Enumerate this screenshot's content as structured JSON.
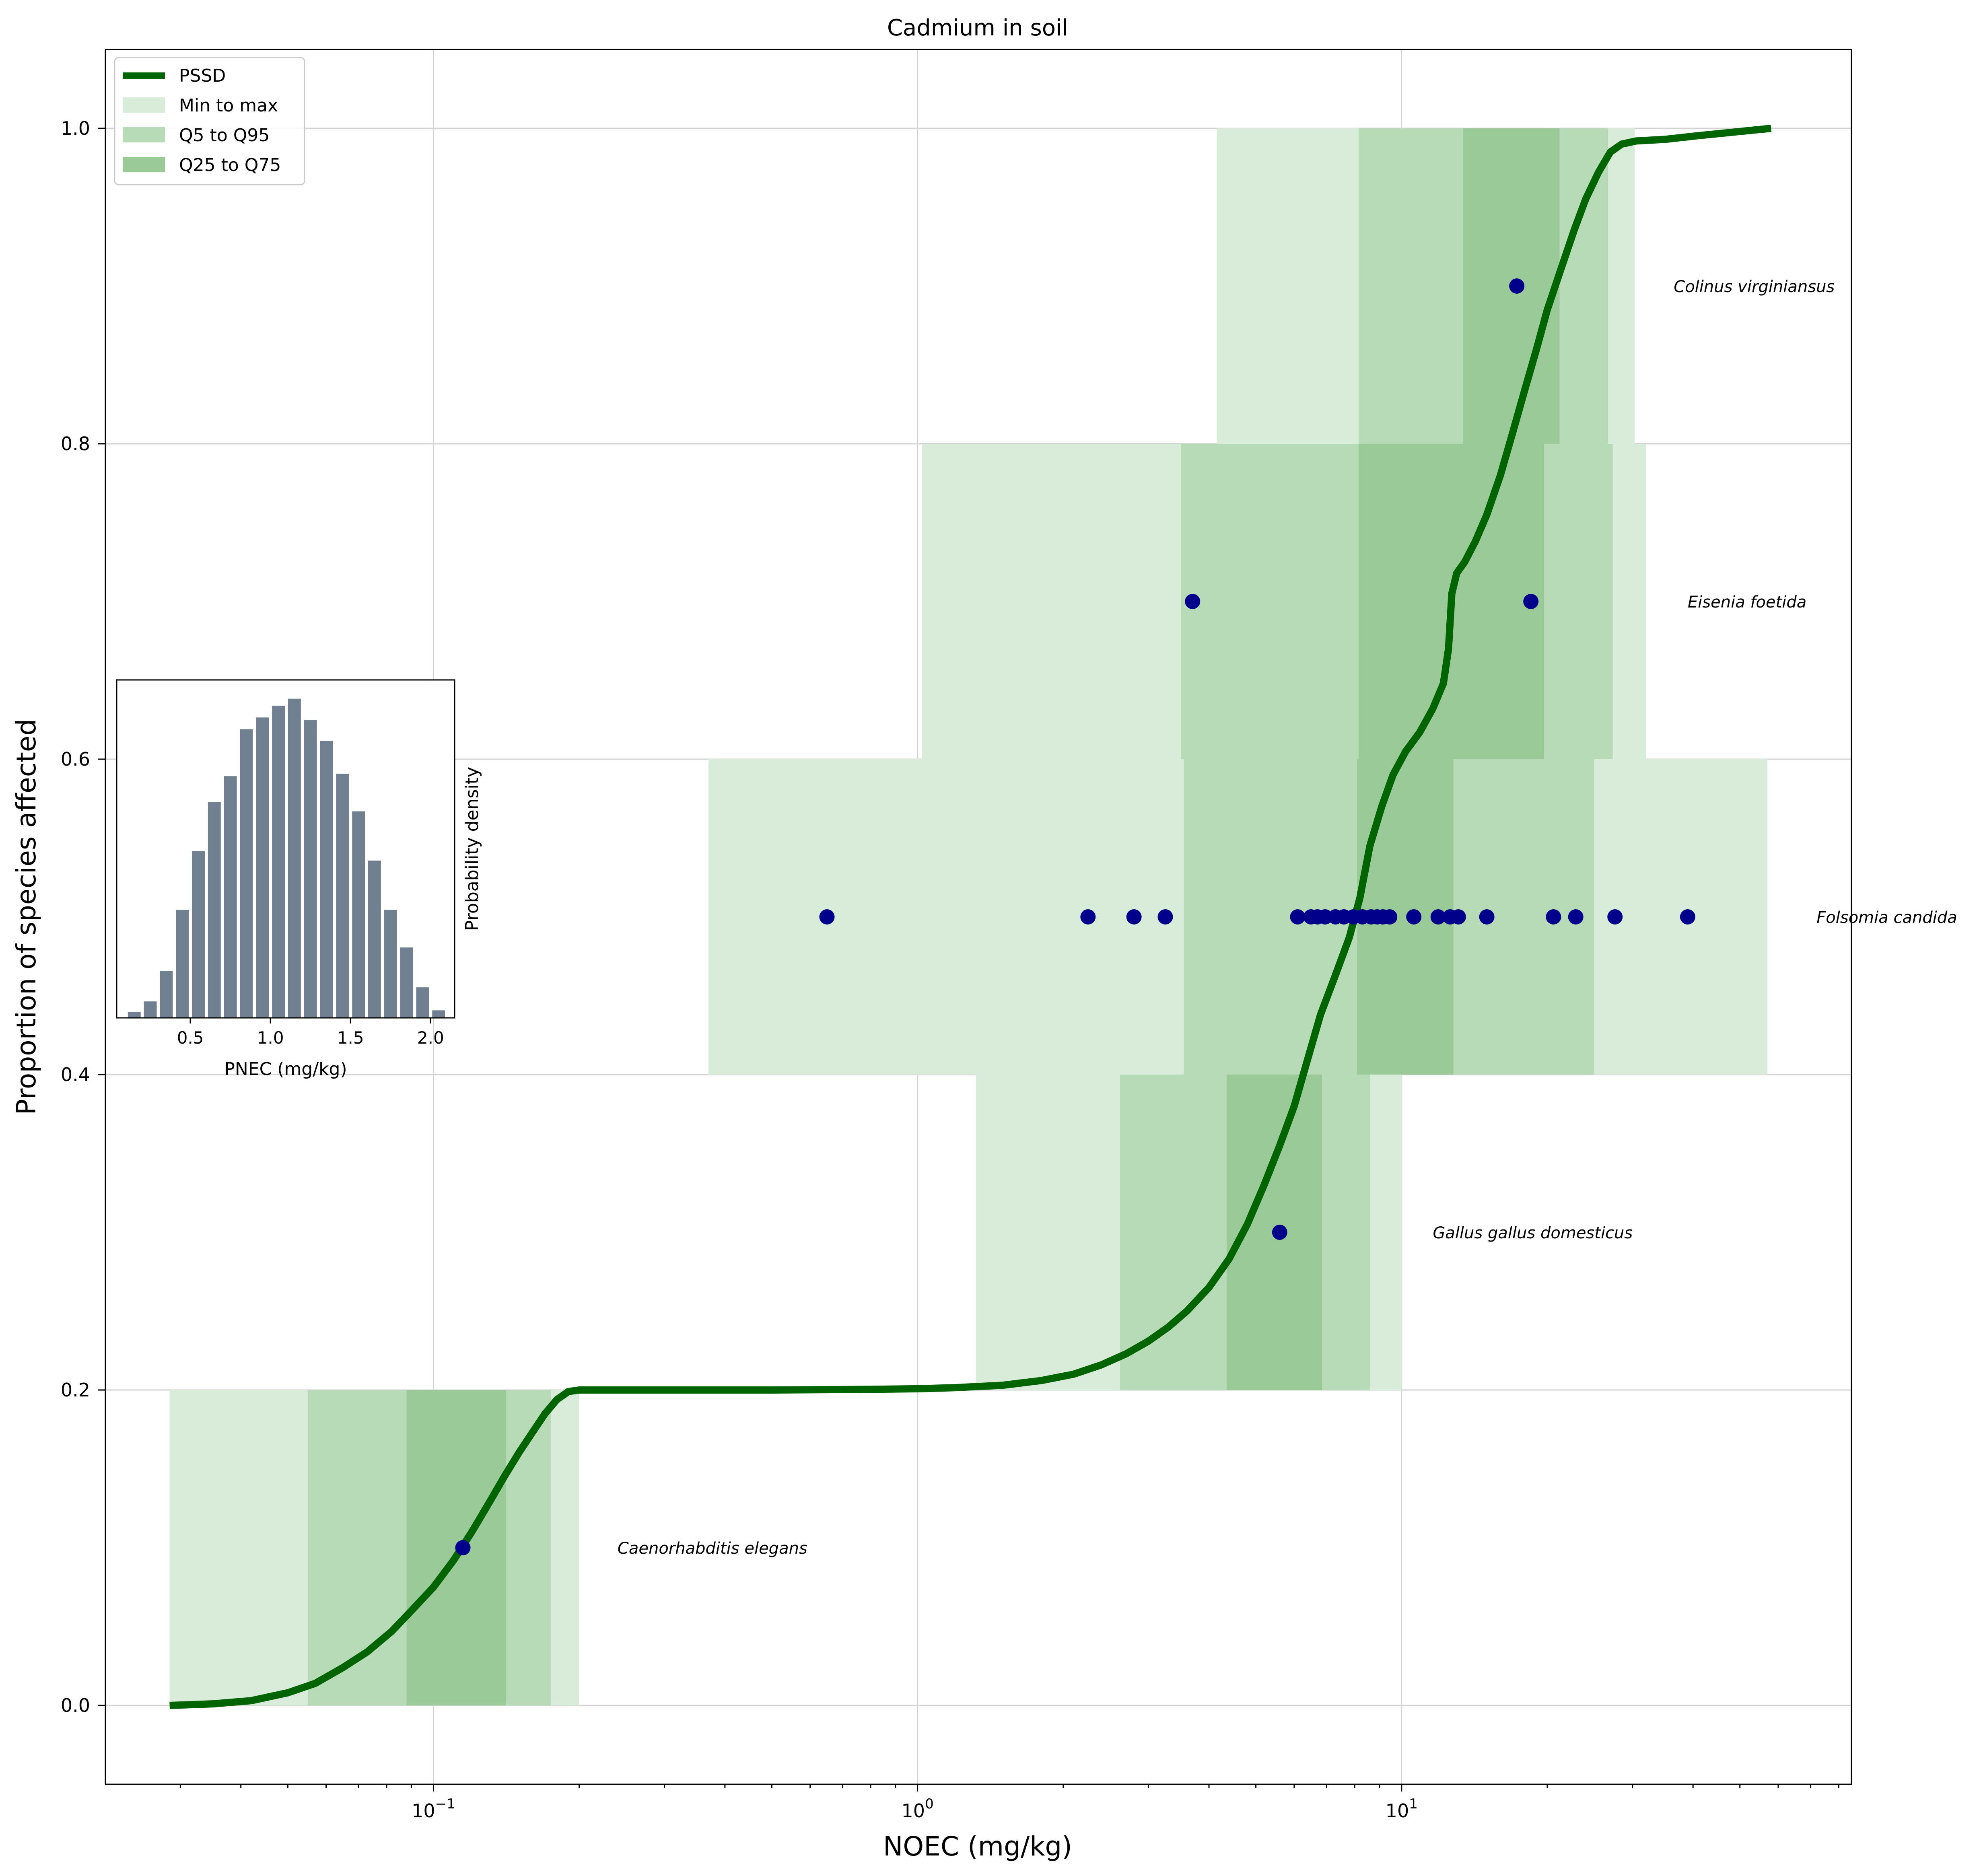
{
  "chart_data": [
    {
      "type": "line",
      "title": "Cadmium in soil",
      "xlabel": "NOEC (mg/kg)",
      "ylabel": "Proportion of species affected",
      "xscale": "log",
      "xlim": [
        0.021,
        85
      ],
      "ylim": [
        -0.05,
        1.05
      ],
      "xticks": [
        {
          "value": 0.1,
          "base": "10",
          "exp": "−1"
        },
        {
          "value": 1,
          "base": "10",
          "exp": "0"
        },
        {
          "value": 10,
          "base": "10",
          "exp": "1"
        }
      ],
      "yticks": [
        {
          "value": 0.0,
          "label": "0.0"
        },
        {
          "value": 0.2,
          "label": "0.2"
        },
        {
          "value": 0.4,
          "label": "0.4"
        },
        {
          "value": 0.6,
          "label": "0.6"
        },
        {
          "value": 0.8,
          "label": "0.8"
        },
        {
          "value": 1.0,
          "label": "1.0"
        }
      ],
      "grid": true,
      "legend": {
        "placement": "top-left",
        "entries": [
          "PSSD",
          "Min to max",
          "Q5 to Q95",
          "Q25 to Q75"
        ]
      },
      "colors": {
        "pssd": "#006400",
        "points": "#00008b",
        "band_minmax": "#d9ebd9",
        "band_q5q95": "#b7dbb7",
        "band_q25q75": "#99ca98",
        "grid": "#d3d3d3"
      },
      "species": [
        {
          "name": "Caenorhabditis elegans",
          "y_band": [
            0.0,
            0.2
          ],
          "point_y": 0.1,
          "min_max": [
            0.0285,
            0.2
          ],
          "q5_q95": [
            0.055,
            0.175
          ],
          "q25_q75": [
            0.088,
            0.141
          ],
          "label_x": 0.24
        },
        {
          "name": "Gallus gallus domesticus",
          "y_band": [
            0.2,
            0.4
          ],
          "point_y": 0.3,
          "min_max": [
            1.32,
            10.0
          ],
          "q5_q95": [
            2.62,
            8.6
          ],
          "q25_q75": [
            4.35,
            6.85
          ],
          "label_x": 11.6
        },
        {
          "name": "Folsomia candida",
          "y_band": [
            0.4,
            0.6
          ],
          "point_y": 0.5,
          "min_max": [
            0.37,
            57.0
          ],
          "q5_q95": [
            3.55,
            25.0
          ],
          "q25_q75": [
            8.1,
            12.8
          ],
          "label_x": 72.0
        },
        {
          "name": "Eisenia foetida",
          "y_band": [
            0.6,
            0.8
          ],
          "point_y": 0.7,
          "min_max": [
            1.02,
            32.0
          ],
          "q5_q95": [
            3.5,
            27.3
          ],
          "q25_q75": [
            8.15,
            19.7
          ],
          "label_x": 39.0
        },
        {
          "name": "Colinus virginiansus",
          "y_band": [
            0.8,
            1.0
          ],
          "point_y": 0.9,
          "min_max": [
            4.15,
            30.3
          ],
          "q5_q95": [
            8.15,
            26.7
          ],
          "q25_q75": [
            13.4,
            21.2
          ],
          "label_x": 36.5
        }
      ],
      "points": [
        {
          "x": 0.115,
          "y": 0.1
        },
        {
          "x": 5.6,
          "y": 0.3
        },
        {
          "x": 3.7,
          "y": 0.7
        },
        {
          "x": 18.5,
          "y": 0.7
        },
        {
          "x": 17.3,
          "y": 0.9
        },
        {
          "x": 0.65,
          "y": 0.5
        },
        {
          "x": 2.25,
          "y": 0.5
        },
        {
          "x": 2.8,
          "y": 0.5
        },
        {
          "x": 3.25,
          "y": 0.5
        },
        {
          "x": 6.1,
          "y": 0.5
        },
        {
          "x": 6.5,
          "y": 0.5
        },
        {
          "x": 6.7,
          "y": 0.5
        },
        {
          "x": 6.95,
          "y": 0.5
        },
        {
          "x": 7.3,
          "y": 0.5
        },
        {
          "x": 7.6,
          "y": 0.5
        },
        {
          "x": 7.95,
          "y": 0.5
        },
        {
          "x": 8.3,
          "y": 0.5
        },
        {
          "x": 8.65,
          "y": 0.5
        },
        {
          "x": 8.9,
          "y": 0.5
        },
        {
          "x": 9.15,
          "y": 0.5
        },
        {
          "x": 9.45,
          "y": 0.5
        },
        {
          "x": 10.6,
          "y": 0.5
        },
        {
          "x": 11.9,
          "y": 0.5
        },
        {
          "x": 12.6,
          "y": 0.5
        },
        {
          "x": 13.1,
          "y": 0.5
        },
        {
          "x": 15.0,
          "y": 0.5
        },
        {
          "x": 20.6,
          "y": 0.5
        },
        {
          "x": 22.9,
          "y": 0.5
        },
        {
          "x": 27.6,
          "y": 0.5
        },
        {
          "x": 39.0,
          "y": 0.5
        }
      ],
      "pssd_curve": [
        {
          "x": 0.0285,
          "y": 0.0
        },
        {
          "x": 0.035,
          "y": 0.001
        },
        {
          "x": 0.042,
          "y": 0.003
        },
        {
          "x": 0.05,
          "y": 0.008
        },
        {
          "x": 0.057,
          "y": 0.014
        },
        {
          "x": 0.065,
          "y": 0.024
        },
        {
          "x": 0.073,
          "y": 0.034
        },
        {
          "x": 0.082,
          "y": 0.047
        },
        {
          "x": 0.09,
          "y": 0.06
        },
        {
          "x": 0.1,
          "y": 0.075
        },
        {
          "x": 0.11,
          "y": 0.092
        },
        {
          "x": 0.12,
          "y": 0.11
        },
        {
          "x": 0.13,
          "y": 0.128
        },
        {
          "x": 0.14,
          "y": 0.145
        },
        {
          "x": 0.15,
          "y": 0.16
        },
        {
          "x": 0.16,
          "y": 0.173
        },
        {
          "x": 0.17,
          "y": 0.185
        },
        {
          "x": 0.18,
          "y": 0.194
        },
        {
          "x": 0.19,
          "y": 0.199
        },
        {
          "x": 0.2,
          "y": 0.2
        },
        {
          "x": 0.5,
          "y": 0.2
        },
        {
          "x": 0.8,
          "y": 0.2004
        },
        {
          "x": 1.0,
          "y": 0.2008
        },
        {
          "x": 1.2,
          "y": 0.2015
        },
        {
          "x": 1.5,
          "y": 0.203
        },
        {
          "x": 1.8,
          "y": 0.206
        },
        {
          "x": 2.1,
          "y": 0.21
        },
        {
          "x": 2.4,
          "y": 0.216
        },
        {
          "x": 2.7,
          "y": 0.223
        },
        {
          "x": 3.0,
          "y": 0.231
        },
        {
          "x": 3.3,
          "y": 0.24
        },
        {
          "x": 3.6,
          "y": 0.25
        },
        {
          "x": 4.0,
          "y": 0.265
        },
        {
          "x": 4.4,
          "y": 0.283
        },
        {
          "x": 4.8,
          "y": 0.305
        },
        {
          "x": 5.2,
          "y": 0.33
        },
        {
          "x": 5.6,
          "y": 0.355
        },
        {
          "x": 6.0,
          "y": 0.38
        },
        {
          "x": 6.4,
          "y": 0.41
        },
        {
          "x": 6.8,
          "y": 0.438
        },
        {
          "x": 7.3,
          "y": 0.463
        },
        {
          "x": 7.8,
          "y": 0.487
        },
        {
          "x": 8.2,
          "y": 0.512
        },
        {
          "x": 8.6,
          "y": 0.545
        },
        {
          "x": 9.1,
          "y": 0.57
        },
        {
          "x": 9.6,
          "y": 0.59
        },
        {
          "x": 10.2,
          "y": 0.605
        },
        {
          "x": 10.9,
          "y": 0.617
        },
        {
          "x": 11.6,
          "y": 0.632
        },
        {
          "x": 12.2,
          "y": 0.648
        },
        {
          "x": 12.5,
          "y": 0.67
        },
        {
          "x": 12.7,
          "y": 0.705
        },
        {
          "x": 13.0,
          "y": 0.718
        },
        {
          "x": 13.5,
          "y": 0.725
        },
        {
          "x": 14.2,
          "y": 0.738
        },
        {
          "x": 15.0,
          "y": 0.755
        },
        {
          "x": 16.0,
          "y": 0.78
        },
        {
          "x": 17.0,
          "y": 0.808
        },
        {
          "x": 18.0,
          "y": 0.835
        },
        {
          "x": 19.0,
          "y": 0.86
        },
        {
          "x": 20.0,
          "y": 0.885
        },
        {
          "x": 21.3,
          "y": 0.91
        },
        {
          "x": 22.7,
          "y": 0.935
        },
        {
          "x": 24.0,
          "y": 0.955
        },
        {
          "x": 25.5,
          "y": 0.972
        },
        {
          "x": 27.0,
          "y": 0.985
        },
        {
          "x": 28.5,
          "y": 0.99
        },
        {
          "x": 30.5,
          "y": 0.992
        },
        {
          "x": 35.0,
          "y": 0.993
        },
        {
          "x": 40.0,
          "y": 0.995
        },
        {
          "x": 50.0,
          "y": 0.998
        },
        {
          "x": 58.0,
          "y": 1.0
        }
      ]
    },
    {
      "type": "bar",
      "xlabel": "PNEC (mg/kg)",
      "ylabel": "Probability density",
      "xlim": [
        0.04,
        2.15
      ],
      "ylim": [
        0,
        0.72
      ],
      "xticks": [
        "0.5",
        "1.0",
        "1.5",
        "2.0"
      ],
      "bar_color": "#708090",
      "bin_width": 0.1,
      "bin_centers": [
        0.15,
        0.25,
        0.35,
        0.45,
        0.55,
        0.65,
        0.75,
        0.85,
        0.95,
        1.05,
        1.15,
        1.25,
        1.35,
        1.45,
        1.55,
        1.65,
        1.75,
        1.85,
        1.95,
        2.05
      ],
      "values": [
        0.012,
        0.035,
        0.1,
        0.23,
        0.355,
        0.46,
        0.515,
        0.615,
        0.64,
        0.665,
        0.68,
        0.635,
        0.59,
        0.52,
        0.44,
        0.335,
        0.23,
        0.15,
        0.065,
        0.016
      ]
    }
  ]
}
